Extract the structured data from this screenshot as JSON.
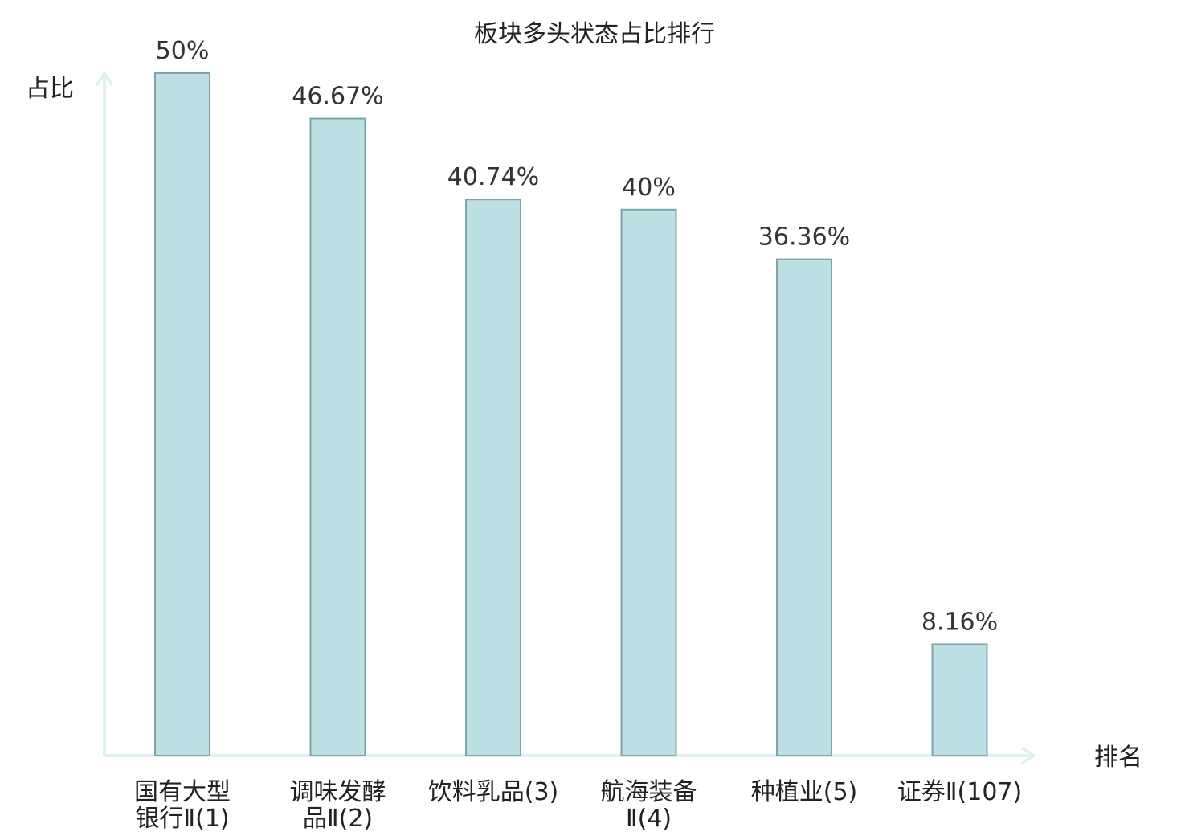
{
  "chart_data": {
    "type": "bar",
    "title": "板块多头状态占比排行",
    "ylabel": "占比",
    "xlabel": "排名",
    "ylim": [
      0,
      50
    ],
    "categories": [
      [
        "国有大型",
        "银行Ⅱ(1)"
      ],
      [
        "调味发酵",
        "品Ⅱ(2)"
      ],
      [
        "饮料乳品(3)"
      ],
      [
        "航海装备",
        "Ⅱ(4)"
      ],
      [
        "种植业(5)"
      ],
      [
        "证券Ⅱ(107)"
      ]
    ],
    "values": [
      50,
      46.67,
      40.74,
      40,
      36.36,
      8.16
    ],
    "value_labels": [
      "50%",
      "46.67%",
      "40.74%",
      "40%",
      "36.36%",
      "8.16%"
    ],
    "highlight_index": 5,
    "grid": false,
    "legend": "none",
    "colors": {
      "bar_fill": "#bce0e3",
      "bar_stroke": "#7fa3a6",
      "axis": "#dff1ee",
      "text": "#222222",
      "highlight_text": "#e8141a"
    }
  }
}
